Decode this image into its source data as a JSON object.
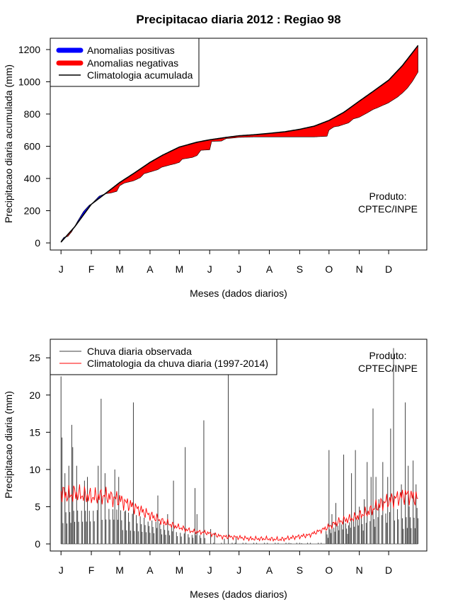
{
  "title": "Precipitacao diaria 2012 : Regiao 98",
  "producer_label": "Produto:",
  "producer_name": "CPTEC/INPE",
  "colors": {
    "positive": "#0000ff",
    "negative": "#ff0000",
    "climatology": "#000000",
    "observed_bars": "#404040",
    "clim_daily": "#ff0000"
  },
  "chart_data": [
    {
      "type": "area",
      "name": "accumulated",
      "ylabel": "Precipitacao diaria acumulada (mm)",
      "xlabel": "Meses (dados diarios)",
      "ylim": [
        0,
        1250
      ],
      "yticks": [
        0,
        200,
        400,
        600,
        800,
        1000,
        1200
      ],
      "xlim": [
        -10,
        375
      ],
      "month_ticks": [
        "J",
        "F",
        "M",
        "A",
        "M",
        "J",
        "J",
        "A",
        "S",
        "O",
        "N",
        "D"
      ],
      "month_start_days": [
        1,
        32,
        61,
        92,
        122,
        153,
        183,
        214,
        245,
        275,
        306,
        336
      ],
      "legend": [
        "Anomalias positivas",
        "Anomalias negativas",
        "Climatologia acumulada"
      ],
      "climatology_cumulative": {
        "days": [
          1,
          15,
          32,
          45,
          61,
          75,
          92,
          105,
          122,
          140,
          153,
          170,
          183,
          200,
          214,
          230,
          245,
          260,
          275,
          290,
          306,
          320,
          336,
          350,
          366
        ],
        "values": [
          5,
          100,
          240,
          300,
          375,
          430,
          500,
          545,
          595,
          625,
          640,
          655,
          665,
          672,
          680,
          690,
          705,
          725,
          760,
          810,
          880,
          940,
          1010,
          1100,
          1225
        ]
      },
      "observed_cumulative": {
        "days": [
          1,
          4,
          8,
          12,
          18,
          24,
          30,
          32,
          40,
          46,
          52,
          58,
          61,
          66,
          75,
          82,
          86,
          92,
          100,
          104,
          110,
          118,
          122,
          125,
          135,
          140,
          144,
          153,
          155,
          165,
          170,
          175,
          183,
          200,
          214,
          230,
          245,
          260,
          273,
          275,
          280,
          285,
          290,
          295,
          300,
          306,
          315,
          320,
          325,
          336,
          345,
          350,
          355,
          360,
          366
        ],
        "values": [
          10,
          35,
          40,
          70,
          135,
          195,
          235,
          240,
          290,
          305,
          310,
          320,
          355,
          372,
          385,
          405,
          430,
          440,
          455,
          470,
          480,
          492,
          500,
          520,
          530,
          542,
          575,
          578,
          630,
          632,
          648,
          650,
          655,
          658,
          658,
          658,
          658,
          658,
          662,
          700,
          720,
          725,
          735,
          745,
          770,
          780,
          810,
          828,
          840,
          870,
          905,
          930,
          960,
          1000,
          1060
        ]
      }
    },
    {
      "type": "bar",
      "name": "daily",
      "ylabel": "Precipitacao diaria (mm)",
      "xlabel": "Meses (dados diarios)",
      "ylim": [
        0,
        27
      ],
      "yticks": [
        0,
        5,
        10,
        15,
        20,
        25
      ],
      "xlim": [
        -10,
        375
      ],
      "month_ticks": [
        "J",
        "F",
        "M",
        "A",
        "M",
        "J",
        "J",
        "A",
        "S",
        "O",
        "N",
        "D"
      ],
      "month_start_days": [
        1,
        32,
        61,
        92,
        122,
        153,
        183,
        214,
        245,
        275,
        306,
        336
      ],
      "legend": [
        "Chuva diaria observada",
        "Climatologia da chuva diaria (1997-2014)"
      ],
      "observed_daily_peaks": {
        "days": [
          1,
          2,
          5,
          9,
          12,
          13,
          17,
          25,
          28,
          39,
          42,
          46,
          56,
          60,
          67,
          75,
          90,
          100,
          110,
          116,
          128,
          138,
          140,
          147,
          154,
          158,
          168,
          172,
          180,
          236,
          247,
          275,
          278,
          282,
          286,
          290,
          295,
          298,
          302,
          306,
          311,
          314,
          318,
          320,
          323,
          326,
          330,
          335,
          338,
          341,
          349,
          353,
          356,
          361,
          364
        ],
        "values": [
          22.5,
          14.3,
          9.5,
          10.5,
          16.0,
          13.0,
          10.5,
          8.5,
          9.0,
          10.5,
          19.5,
          9.5,
          10.0,
          9.0,
          4.5,
          19.0,
          3.0,
          6.5,
          4.0,
          8.5,
          13.0,
          7.5,
          4.0,
          16.6,
          2.0,
          1.5,
          0.7,
          23.0,
          0.8,
          0.1,
          0.1,
          12.6,
          4.0,
          5.5,
          3.0,
          12.0,
          2.5,
          9.5,
          12.6,
          5.0,
          6.0,
          11.0,
          9.0,
          18.2,
          9.0,
          6.0,
          11.0,
          9.0,
          15.5,
          26.3,
          8.0,
          19.0,
          10.5,
          11.2,
          8.0
        ]
      },
      "climatology_daily": {
        "days": [
          1,
          8,
          15,
          25,
          35,
          45,
          60,
          75,
          90,
          105,
          120,
          135,
          150,
          165,
          180,
          195,
          210,
          225,
          240,
          255,
          270,
          285,
          300,
          315,
          330,
          345,
          355,
          366
        ],
        "values": [
          7.0,
          6.5,
          6.8,
          6.5,
          6.3,
          6.5,
          6.0,
          5.0,
          4.0,
          3.0,
          2.3,
          1.7,
          1.5,
          1.0,
          0.9,
          0.7,
          0.7,
          0.6,
          0.9,
          1.2,
          2.0,
          3.0,
          3.5,
          4.3,
          5.5,
          6.2,
          6.6,
          6.0
        ]
      }
    }
  ]
}
